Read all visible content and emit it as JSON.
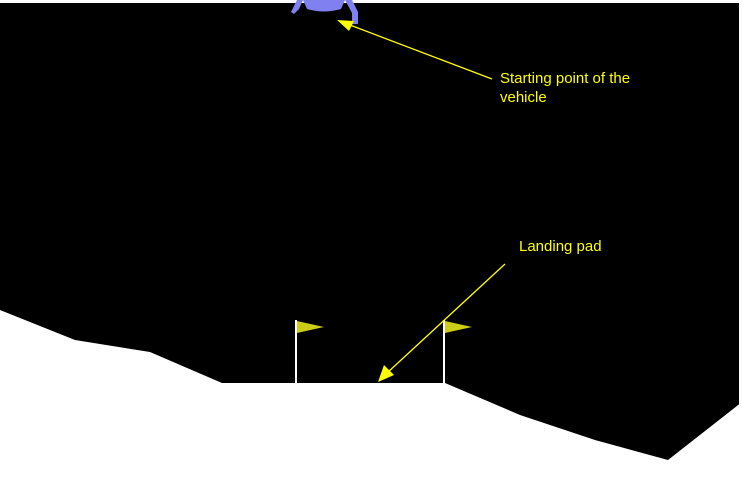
{
  "annotations": {
    "start_line1": "Starting point of the",
    "start_line2": "vehicle",
    "landing_pad": "Landing pad"
  },
  "colors": {
    "sky": "#000000",
    "terrain": "#ffffff",
    "lander": "#8080f0",
    "flag": "#cccc19",
    "pole": "#ffffff",
    "annotation": "#ffff00",
    "frame": "#ffffff"
  },
  "icons": {
    "lander": "lunar-lander-icon",
    "flag": "flag-icon",
    "arrow": "arrow-pointer-icon"
  }
}
